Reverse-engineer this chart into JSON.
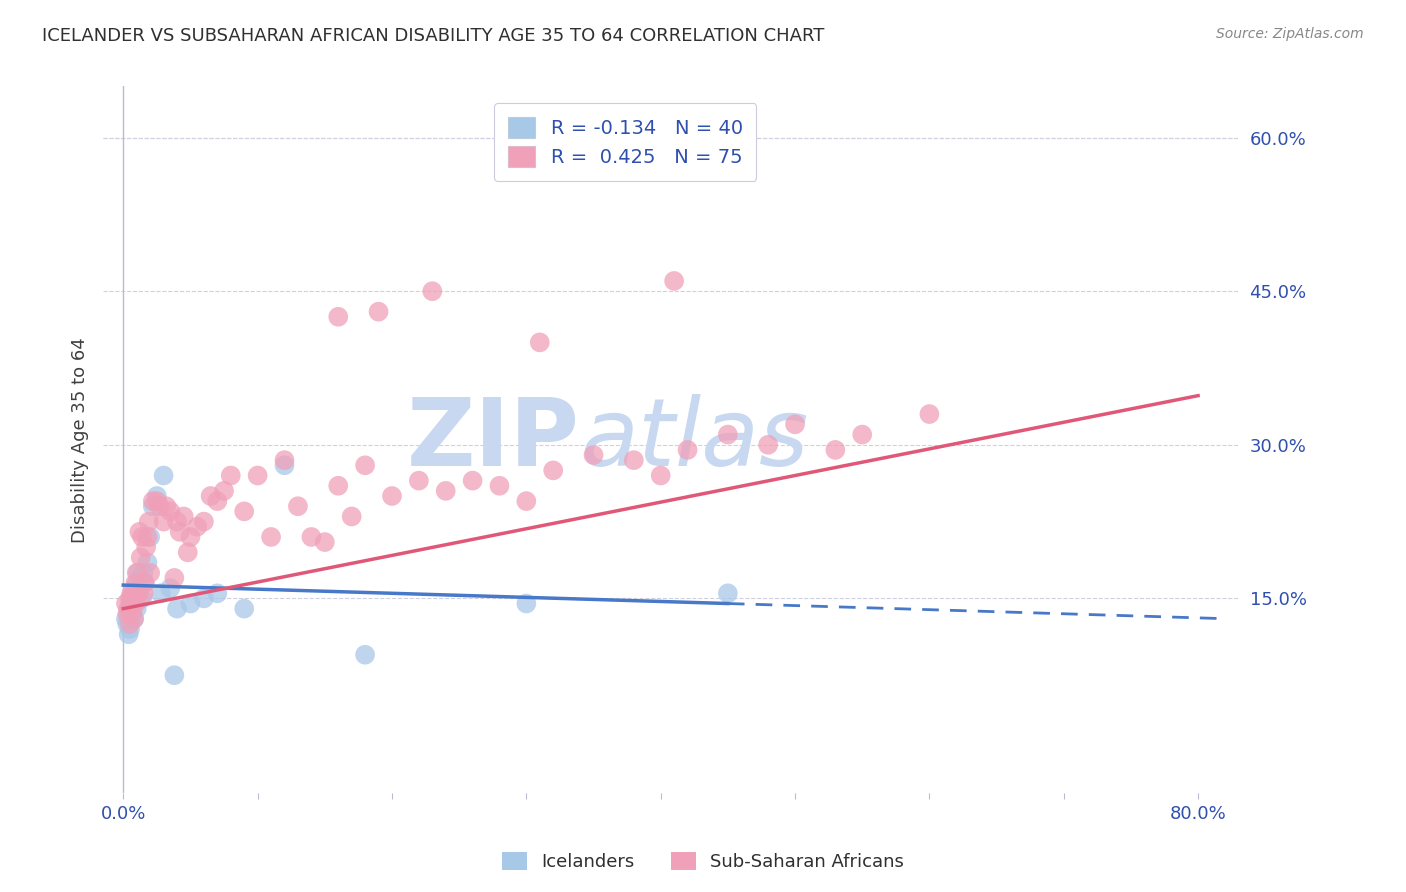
{
  "title": "ICELANDER VS SUBSAHARAN AFRICAN DISABILITY AGE 35 TO 64 CORRELATION CHART",
  "source": "Source: ZipAtlas.com",
  "ylabel": "Disability Age 35 to 64",
  "legend_labels_bottom": [
    "Icelanders",
    "Sub-Saharan Africans"
  ],
  "r_blue": -0.134,
  "n_blue": 40,
  "r_pink": 0.425,
  "n_pink": 75,
  "blue_scatter_x": [
    0.002,
    0.003,
    0.004,
    0.004,
    0.005,
    0.005,
    0.006,
    0.006,
    0.007,
    0.007,
    0.008,
    0.008,
    0.009,
    0.009,
    0.01,
    0.01,
    0.011,
    0.011,
    0.012,
    0.013,
    0.014,
    0.015,
    0.016,
    0.018,
    0.02,
    0.022,
    0.025,
    0.028,
    0.03,
    0.035,
    0.038,
    0.04,
    0.05,
    0.06,
    0.07,
    0.09,
    0.12,
    0.18,
    0.3,
    0.45
  ],
  "blue_scatter_y": [
    0.13,
    0.125,
    0.115,
    0.14,
    0.135,
    0.12,
    0.15,
    0.145,
    0.155,
    0.135,
    0.145,
    0.13,
    0.15,
    0.16,
    0.165,
    0.14,
    0.155,
    0.175,
    0.16,
    0.17,
    0.15,
    0.175,
    0.165,
    0.185,
    0.21,
    0.24,
    0.25,
    0.155,
    0.27,
    0.16,
    0.075,
    0.14,
    0.145,
    0.15,
    0.155,
    0.14,
    0.28,
    0.095,
    0.145,
    0.155
  ],
  "pink_scatter_x": [
    0.002,
    0.003,
    0.004,
    0.005,
    0.005,
    0.006,
    0.006,
    0.007,
    0.007,
    0.008,
    0.008,
    0.009,
    0.009,
    0.01,
    0.01,
    0.011,
    0.012,
    0.013,
    0.014,
    0.015,
    0.016,
    0.017,
    0.018,
    0.019,
    0.02,
    0.022,
    0.025,
    0.027,
    0.03,
    0.032,
    0.035,
    0.038,
    0.04,
    0.042,
    0.045,
    0.048,
    0.05,
    0.055,
    0.06,
    0.065,
    0.07,
    0.075,
    0.08,
    0.09,
    0.1,
    0.11,
    0.12,
    0.13,
    0.14,
    0.15,
    0.16,
    0.17,
    0.18,
    0.2,
    0.22,
    0.24,
    0.26,
    0.28,
    0.3,
    0.32,
    0.35,
    0.38,
    0.4,
    0.42,
    0.45,
    0.48,
    0.5,
    0.53,
    0.55,
    0.6,
    0.23,
    0.31,
    0.19,
    0.41,
    0.16
  ],
  "pink_scatter_y": [
    0.145,
    0.135,
    0.14,
    0.15,
    0.125,
    0.145,
    0.155,
    0.15,
    0.14,
    0.155,
    0.13,
    0.165,
    0.145,
    0.155,
    0.175,
    0.155,
    0.215,
    0.19,
    0.21,
    0.155,
    0.165,
    0.2,
    0.21,
    0.225,
    0.175,
    0.245,
    0.245,
    0.24,
    0.225,
    0.24,
    0.235,
    0.17,
    0.225,
    0.215,
    0.23,
    0.195,
    0.21,
    0.22,
    0.225,
    0.25,
    0.245,
    0.255,
    0.27,
    0.235,
    0.27,
    0.21,
    0.285,
    0.24,
    0.21,
    0.205,
    0.26,
    0.23,
    0.28,
    0.25,
    0.265,
    0.255,
    0.265,
    0.26,
    0.245,
    0.275,
    0.29,
    0.285,
    0.27,
    0.295,
    0.31,
    0.3,
    0.32,
    0.295,
    0.31,
    0.33,
    0.45,
    0.4,
    0.43,
    0.46,
    0.425
  ],
  "blue_color": "#a8c8e8",
  "pink_color": "#f0a0b8",
  "blue_line_color": "#4878c8",
  "pink_line_color": "#e05878",
  "background_color": "#ffffff",
  "grid_color": "#d0d0e0",
  "title_color": "#303030",
  "axis_color": "#3050b0",
  "watermark_color": "#c8d8f0",
  "blue_intercept": 0.163,
  "blue_slope": -0.04,
  "pink_intercept": 0.14,
  "pink_slope": 0.26
}
